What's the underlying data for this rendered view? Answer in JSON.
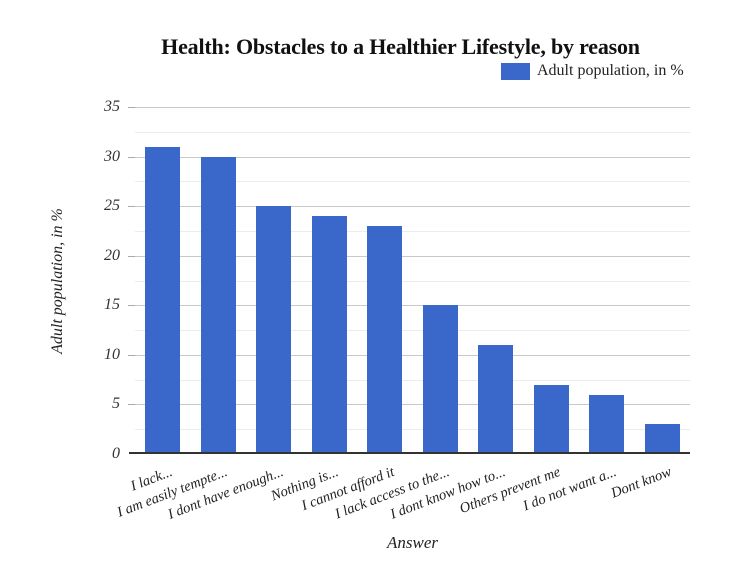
{
  "chart_data": {
    "type": "bar",
    "title": "Health: Obstacles to a Healthier Lifestyle, by reason",
    "legend": "Adult population, in %",
    "legend_position": "top-right",
    "xlabel": "Answer",
    "ylabel": "Adult population, in %",
    "categories": [
      "I lack...",
      "I am easily tempte...",
      "I dont have enough...",
      "Nothing is...",
      "I cannot afford it",
      "I lack access to the...",
      "I dont know how to...",
      "Others prevent me",
      "I do not want a...",
      "Dont know"
    ],
    "series": [
      {
        "name": "Adult population, in %",
        "values": [
          31,
          30,
          25,
          24,
          23,
          15,
          11,
          7,
          6,
          3
        ]
      }
    ],
    "ylim": [
      0,
      35
    ],
    "yticks": [
      0,
      5,
      10,
      15,
      20,
      25,
      30,
      35
    ],
    "minor_gridline_step": 2.5,
    "grid": true,
    "colors": {
      "bar": "#3a67ca",
      "major_gridline": "#c9c9c9",
      "minor_gridline": "#ececec",
      "axis_line": "#333333",
      "text": "#222222"
    }
  }
}
